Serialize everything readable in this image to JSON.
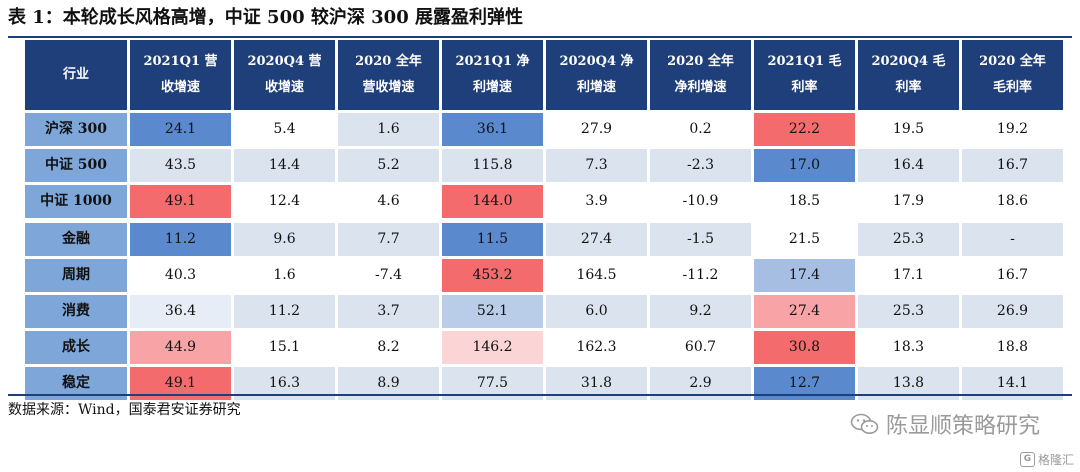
{
  "title": "表 1：本轮成长风格高增，中证 500 较沪深 300 展露盈利弹性",
  "table": {
    "header_fill": "#1f3f7a",
    "header_text_color": "#ffffff",
    "row_header_fill": "#7fa6d9",
    "headers": [
      [
        "行业"
      ],
      [
        "2021Q1 营",
        "收增速"
      ],
      [
        "2020Q4 营",
        "收增速"
      ],
      [
        "2020 全年",
        "营收增速"
      ],
      [
        "2021Q1 净",
        "利增速"
      ],
      [
        "2020Q4 净",
        "利增速"
      ],
      [
        "2020 全年",
        "净利增速"
      ],
      [
        "2021Q1 毛",
        "利率"
      ],
      [
        "2020Q4 毛",
        "利率"
      ],
      [
        "2020 全年",
        "毛利率"
      ]
    ],
    "rows": [
      {
        "name": "沪深 300",
        "cells": [
          {
            "v": "24.1",
            "bg": "#5b89cd"
          },
          {
            "v": "5.4",
            "bg": "#ffffff"
          },
          {
            "v": "1.6",
            "bg": "#dbe3ef"
          },
          {
            "v": "36.1",
            "bg": "#5b89cd"
          },
          {
            "v": "27.9",
            "bg": "#ffffff"
          },
          {
            "v": "0.2",
            "bg": "#ffffff"
          },
          {
            "v": "22.2",
            "bg": "#f36b6d"
          },
          {
            "v": "19.5",
            "bg": "#ffffff"
          },
          {
            "v": "19.2",
            "bg": "#ffffff"
          }
        ]
      },
      {
        "name": "中证 500",
        "cells": [
          {
            "v": "43.5",
            "bg": "#dbe3ef"
          },
          {
            "v": "14.4",
            "bg": "#dbe3ef"
          },
          {
            "v": "5.2",
            "bg": "#dbe3ef"
          },
          {
            "v": "115.8",
            "bg": "#dbe3ef"
          },
          {
            "v": "7.3",
            "bg": "#dbe3ef"
          },
          {
            "v": "-2.3",
            "bg": "#dbe3ef"
          },
          {
            "v": "17.0",
            "bg": "#5b89cd"
          },
          {
            "v": "16.4",
            "bg": "#dbe3ef"
          },
          {
            "v": "16.7",
            "bg": "#dbe3ef"
          }
        ]
      },
      {
        "name": "中证 1000",
        "cells": [
          {
            "v": "49.1",
            "bg": "#f36b6d"
          },
          {
            "v": "12.4",
            "bg": "#ffffff"
          },
          {
            "v": "4.6",
            "bg": "#ffffff"
          },
          {
            "v": "144.0",
            "bg": "#f36b6d"
          },
          {
            "v": "3.9",
            "bg": "#ffffff"
          },
          {
            "v": "-10.9",
            "bg": "#ffffff"
          },
          {
            "v": "18.5",
            "bg": "#ffffff"
          },
          {
            "v": "17.9",
            "bg": "#ffffff"
          },
          {
            "v": "18.6",
            "bg": "#ffffff"
          }
        ]
      },
      {
        "name": "金融",
        "cells": [
          {
            "v": "11.2",
            "bg": "#5b89cd"
          },
          {
            "v": "9.6",
            "bg": "#dbe3ef"
          },
          {
            "v": "7.7",
            "bg": "#dbe3ef"
          },
          {
            "v": "11.5",
            "bg": "#5b89cd"
          },
          {
            "v": "27.4",
            "bg": "#dbe3ef"
          },
          {
            "v": "-1.5",
            "bg": "#dbe3ef"
          },
          {
            "v": "21.5",
            "bg": "#ffffff"
          },
          {
            "v": "25.3",
            "bg": "#dbe3ef"
          },
          {
            "v": "-",
            "bg": "#dbe3ef"
          }
        ]
      },
      {
        "name": "周期",
        "cells": [
          {
            "v": "40.3",
            "bg": "#ffffff"
          },
          {
            "v": "1.6",
            "bg": "#ffffff"
          },
          {
            "v": "-7.4",
            "bg": "#ffffff"
          },
          {
            "v": "453.2",
            "bg": "#f36b6d"
          },
          {
            "v": "164.5",
            "bg": "#ffffff"
          },
          {
            "v": "-11.2",
            "bg": "#ffffff"
          },
          {
            "v": "17.4",
            "bg": "#a7bee3"
          },
          {
            "v": "17.1",
            "bg": "#ffffff"
          },
          {
            "v": "16.7",
            "bg": "#ffffff"
          }
        ]
      },
      {
        "name": "消费",
        "cells": [
          {
            "v": "36.4",
            "bg": "#e7edf6"
          },
          {
            "v": "11.2",
            "bg": "#dbe3ef"
          },
          {
            "v": "3.7",
            "bg": "#dbe3ef"
          },
          {
            "v": "52.1",
            "bg": "#b9cce8"
          },
          {
            "v": "6.0",
            "bg": "#dbe3ef"
          },
          {
            "v": "9.2",
            "bg": "#dbe3ef"
          },
          {
            "v": "27.4",
            "bg": "#f8a4a7"
          },
          {
            "v": "25.3",
            "bg": "#dbe3ef"
          },
          {
            "v": "26.9",
            "bg": "#dbe3ef"
          }
        ]
      },
      {
        "name": "成长",
        "cells": [
          {
            "v": "44.9",
            "bg": "#f8a4a7"
          },
          {
            "v": "15.1",
            "bg": "#ffffff"
          },
          {
            "v": "8.2",
            "bg": "#ffffff"
          },
          {
            "v": "146.2",
            "bg": "#fbd5d6"
          },
          {
            "v": "162.3",
            "bg": "#ffffff"
          },
          {
            "v": "60.7",
            "bg": "#ffffff"
          },
          {
            "v": "30.8",
            "bg": "#f36b6d"
          },
          {
            "v": "18.3",
            "bg": "#ffffff"
          },
          {
            "v": "18.8",
            "bg": "#ffffff"
          }
        ]
      },
      {
        "name": "稳定",
        "cells": [
          {
            "v": "49.1",
            "bg": "#f36b6d"
          },
          {
            "v": "16.3",
            "bg": "#dbe3ef"
          },
          {
            "v": "8.9",
            "bg": "#dbe3ef"
          },
          {
            "v": "77.5",
            "bg": "#dbe3ef"
          },
          {
            "v": "31.8",
            "bg": "#dbe3ef"
          },
          {
            "v": "2.9",
            "bg": "#dbe3ef"
          },
          {
            "v": "12.7",
            "bg": "#5b89cd"
          },
          {
            "v": "13.8",
            "bg": "#dbe3ef"
          },
          {
            "v": "14.1",
            "bg": "#dbe3ef"
          }
        ]
      }
    ]
  },
  "source": "数据来源：Wind，国泰君安证券研究",
  "watermark": {
    "icon": "wechat-icon",
    "text": "陈显顺策略研究"
  },
  "corner_logo": {
    "icon": "gelonghui-logo-icon",
    "text": "格隆汇"
  }
}
